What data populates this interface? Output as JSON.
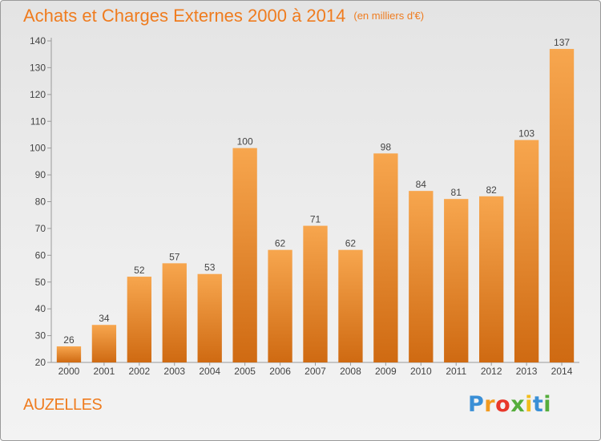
{
  "chart_data": {
    "type": "bar",
    "title": "Achats et Charges Externes 2000 à 2014",
    "subtitle": "(en milliers d'€)",
    "categories": [
      "2000",
      "2001",
      "2002",
      "2003",
      "2004",
      "2005",
      "2006",
      "2007",
      "2008",
      "2009",
      "2010",
      "2011",
      "2012",
      "2013",
      "2014"
    ],
    "values": [
      26,
      34,
      52,
      57,
      53,
      100,
      62,
      71,
      62,
      98,
      84,
      81,
      82,
      103,
      137
    ],
    "ylim": [
      20,
      140
    ],
    "yticks": [
      20,
      30,
      40,
      50,
      60,
      70,
      80,
      90,
      100,
      110,
      120,
      130,
      140
    ],
    "grid": false,
    "bar_color_light": "#f7a64e",
    "bar_color_dark": "#cf6a12"
  },
  "place_name": "AUZELLES",
  "logo": {
    "letters": [
      "P",
      "r",
      "o",
      "x",
      "i",
      "t",
      "i"
    ],
    "colors": [
      "#3a8fd6",
      "#f29a1f",
      "#e8382a",
      "#55ad3c",
      "#f2bd1b",
      "#3a8fd6",
      "#55ad3c"
    ]
  }
}
